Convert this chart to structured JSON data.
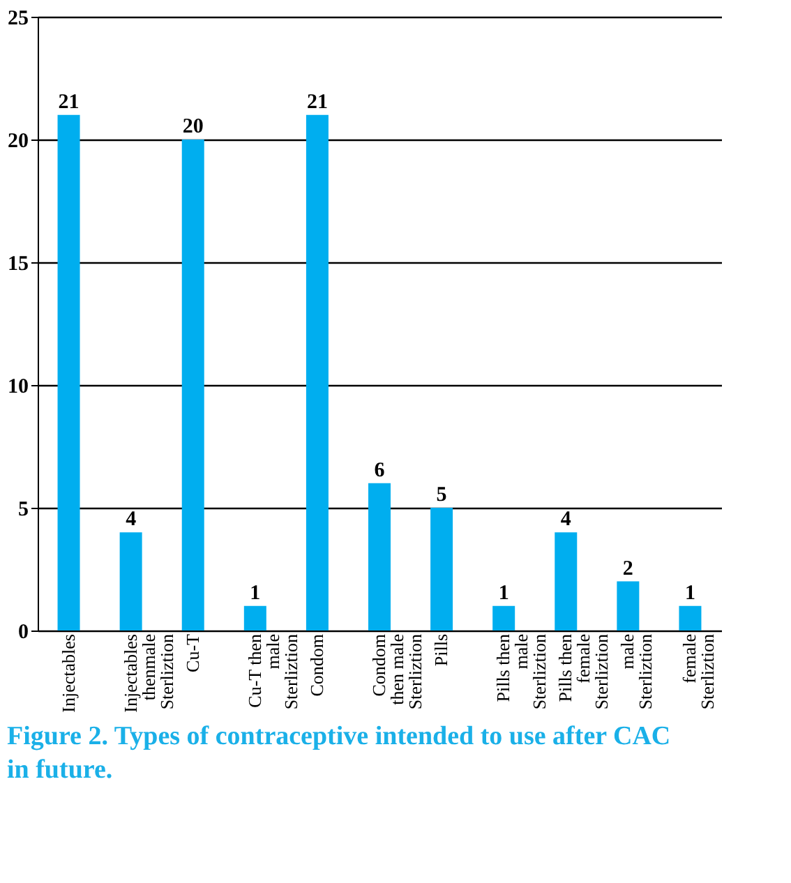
{
  "chart_data": {
    "type": "bar",
    "title": "Figure 2. Types of contraceptive intended to use after CAC in future.",
    "categories": [
      "Injectables",
      "Injectables\nthenmale\nSterliztion",
      "Cu-T",
      "Cu-T then\nmale\nSterliztion",
      "Condom",
      "Condom\nthen male\nSterliztion",
      "Pills",
      "Pills then\nmale\nSterliztion",
      "Pills then\nfemale\nSterliztion",
      "male\nSterliztion",
      "female\nSterliztion"
    ],
    "values": [
      21,
      4,
      20,
      1,
      21,
      6,
      5,
      1,
      4,
      2,
      1
    ],
    "color": "#00aeef",
    "ylim": [
      0,
      25
    ],
    "yticks": [
      0,
      5,
      10,
      15,
      20,
      25
    ],
    "grid": "y",
    "data_labels": true
  }
}
